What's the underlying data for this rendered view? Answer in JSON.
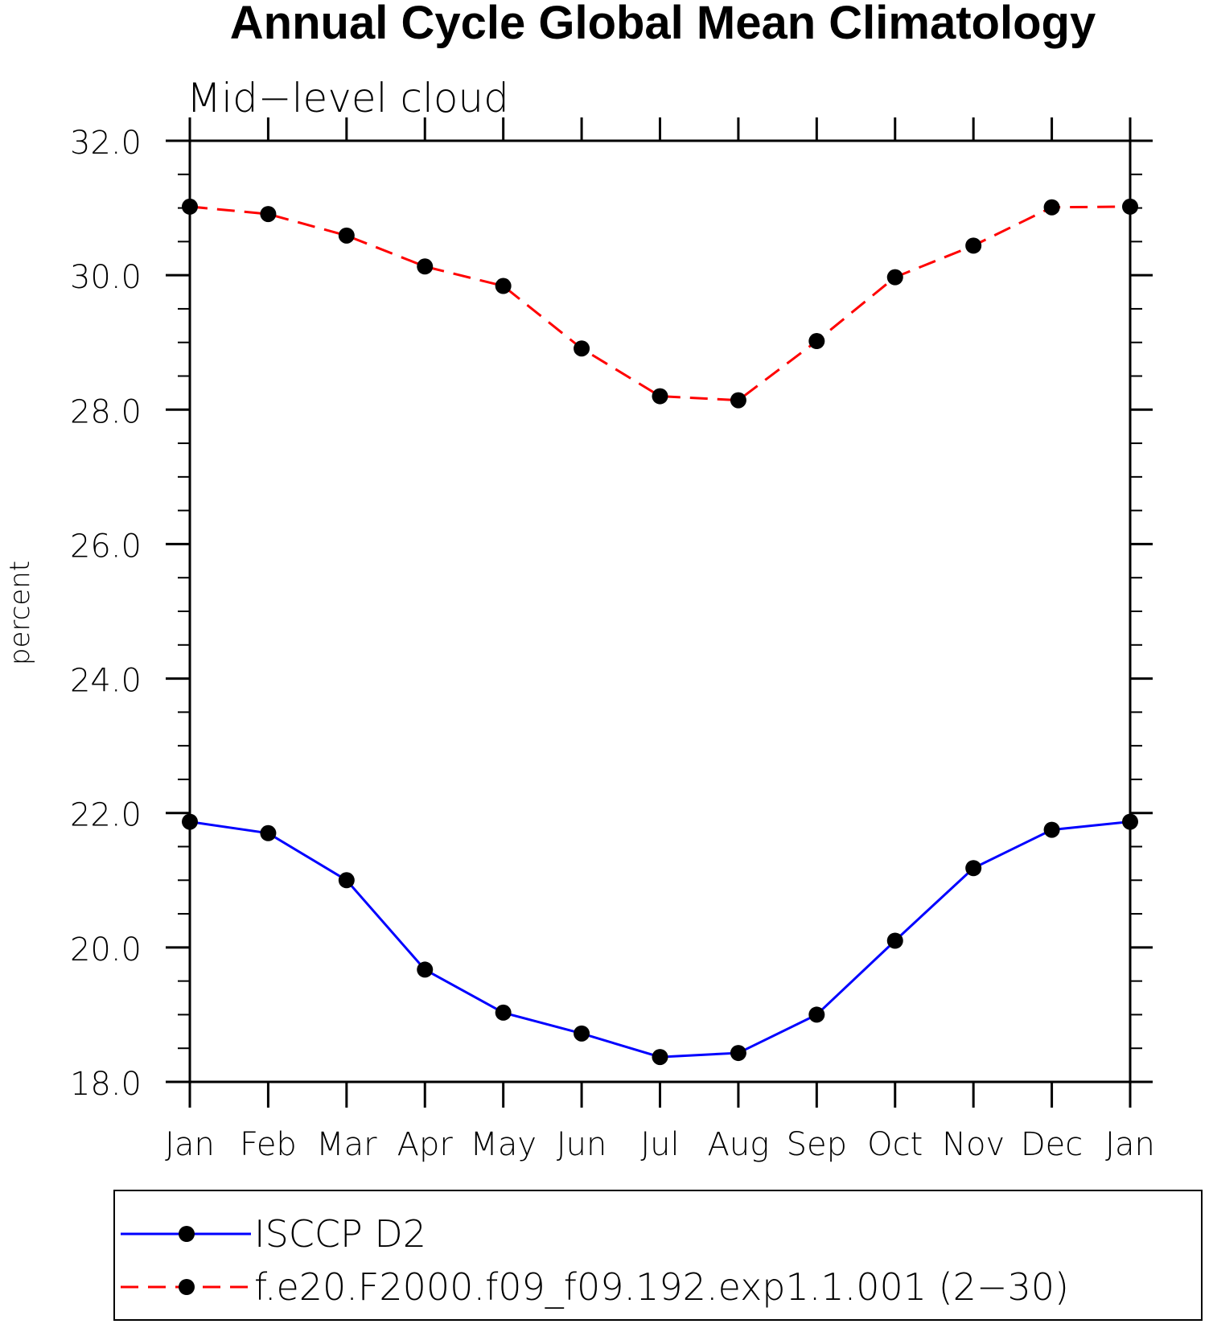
{
  "chart_data": {
    "type": "line",
    "title": "Annual Cycle Global Mean Climatology",
    "subtitle": "Mid−level cloud",
    "xlabel": "",
    "ylabel": "percent",
    "categories": [
      "Jan",
      "Feb",
      "Mar",
      "Apr",
      "May",
      "Jun",
      "Jul",
      "Aug",
      "Sep",
      "Oct",
      "Nov",
      "Dec",
      "Jan"
    ],
    "ylim": [
      18.0,
      32.0
    ],
    "yticks": [
      "18.0",
      "20.0",
      "22.0",
      "24.0",
      "26.0",
      "28.0",
      "30.0",
      "32.0"
    ],
    "grid": false,
    "legend_position": "bottom",
    "series": [
      {
        "name": "ISCCP D2",
        "color": "#0000ff",
        "dash": "solid",
        "marker": "circle",
        "values": [
          21.87,
          21.7,
          21.0,
          19.67,
          19.03,
          18.72,
          18.37,
          18.43,
          19.0,
          20.1,
          21.18,
          21.75,
          21.87
        ]
      },
      {
        "name": "f.e20.F2000.f09_f09.192.exp1.1.001 (2−30)",
        "color": "#ff0000",
        "dash": "dashed",
        "marker": "circle",
        "values": [
          31.02,
          30.91,
          30.59,
          30.13,
          29.84,
          28.91,
          28.2,
          28.14,
          29.02,
          29.97,
          30.44,
          31.01,
          31.02
        ]
      }
    ]
  }
}
